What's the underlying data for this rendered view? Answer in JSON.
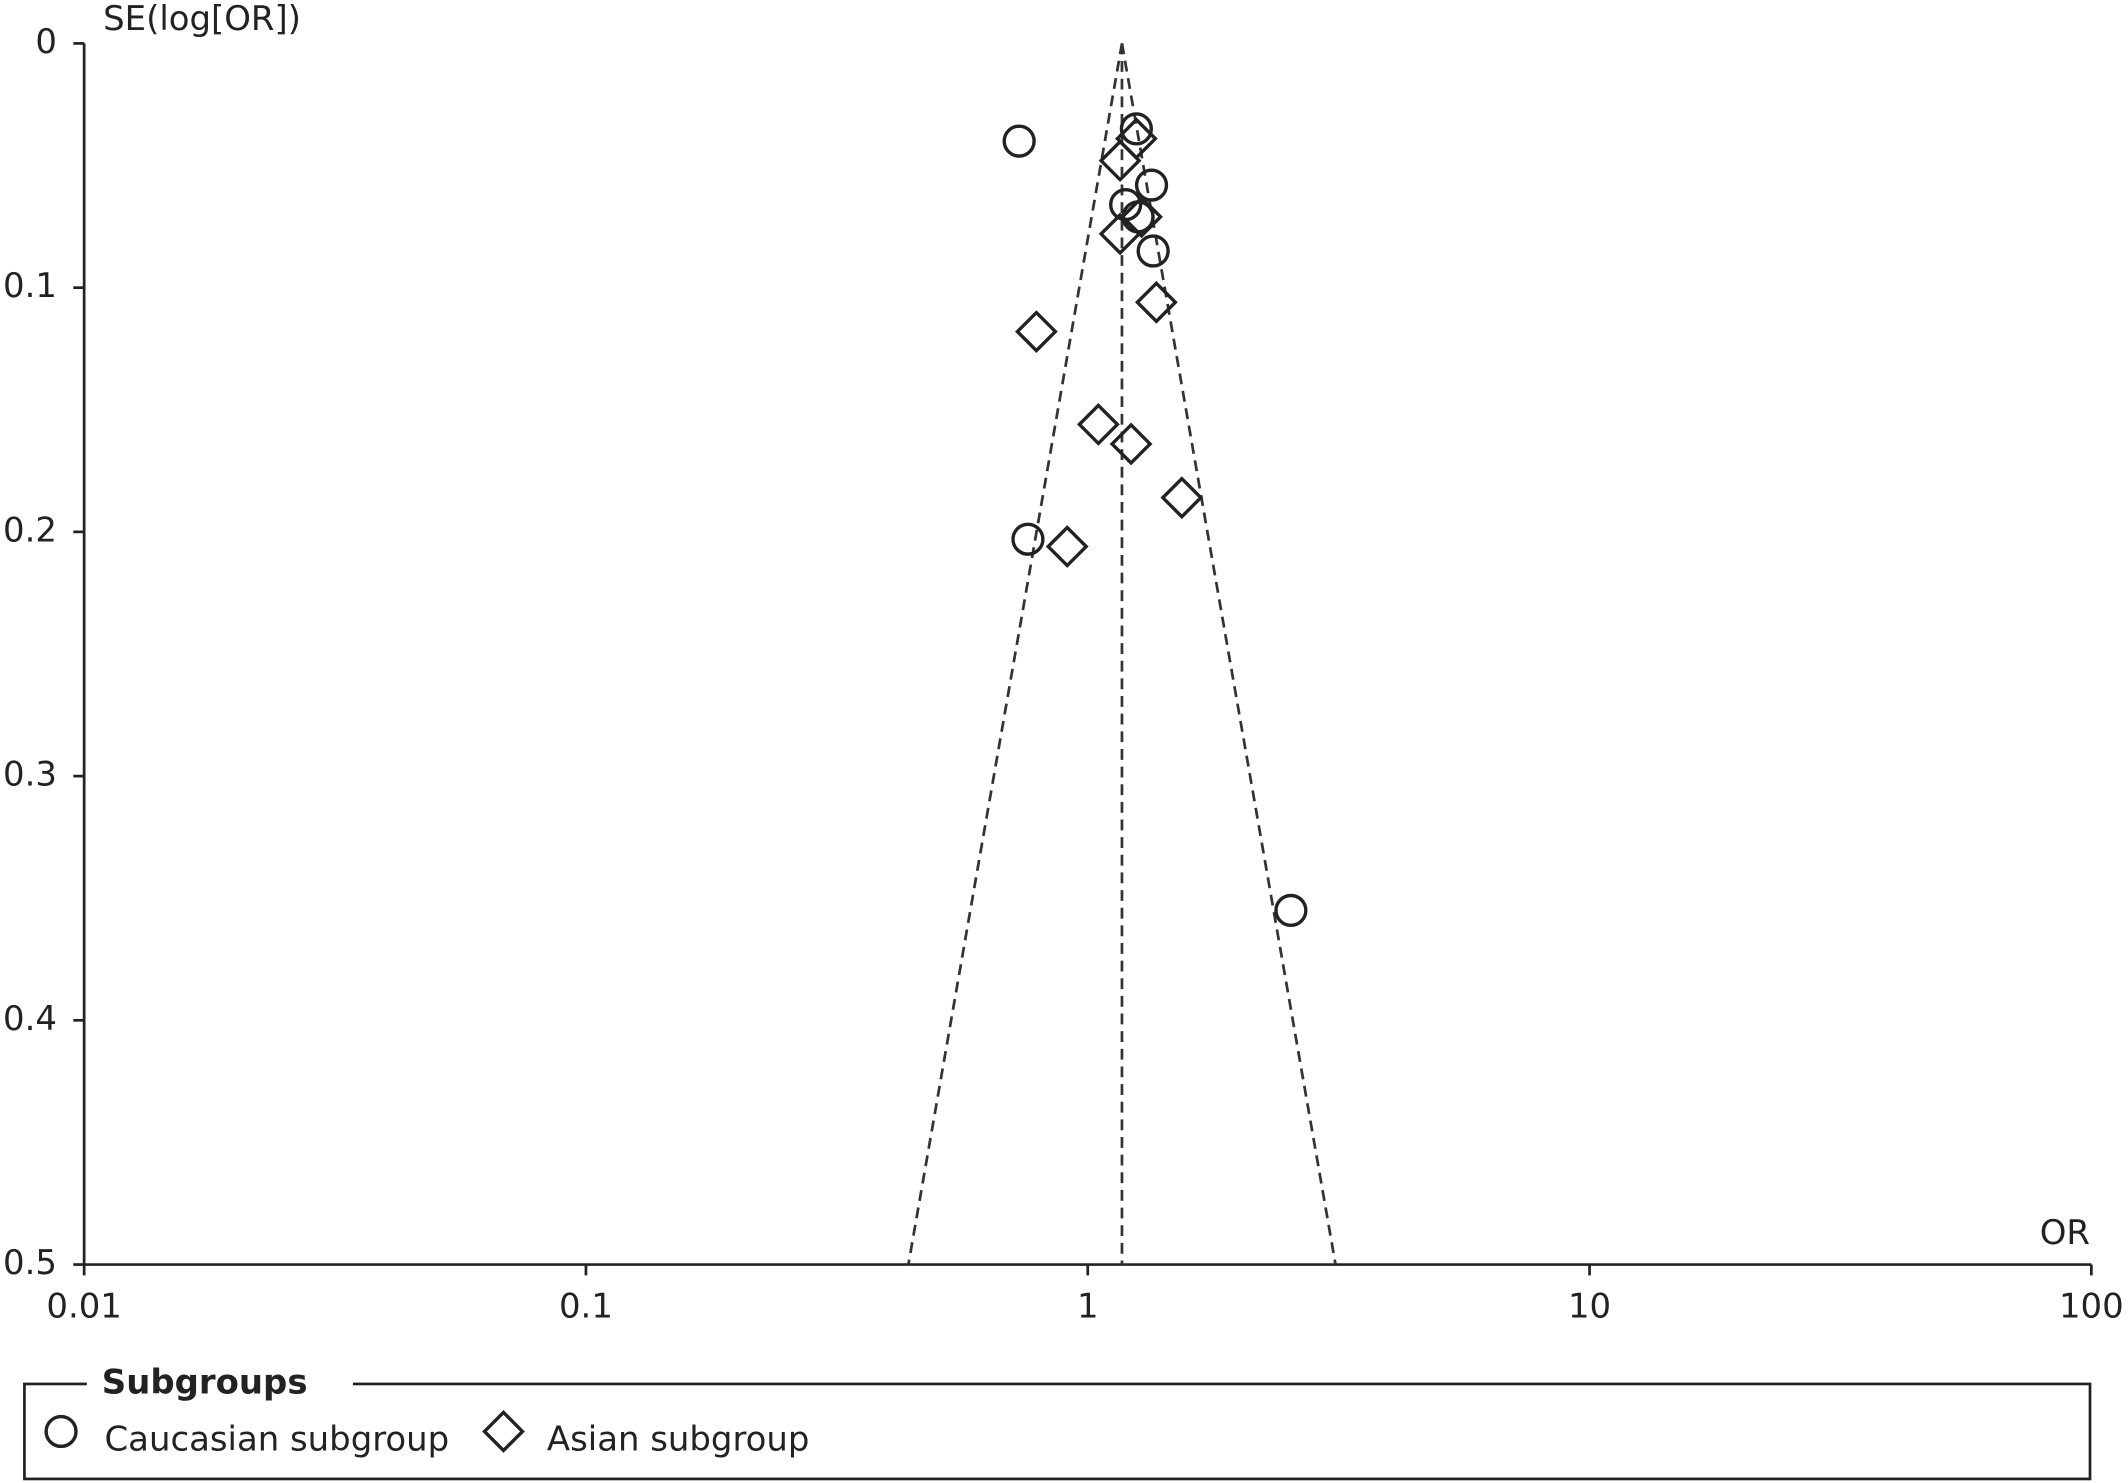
{
  "chart_data": {
    "type": "scatter",
    "y_axis_label": "SE(log[OR])",
    "x_axis_label": "OR",
    "x_log": true,
    "y_inverted": true,
    "xlim": [
      0.01,
      100
    ],
    "xticks": [
      0.01,
      0.1,
      1,
      10,
      100
    ],
    "ylim": [
      0,
      0.5
    ],
    "yticks": [
      0,
      0.1,
      0.2,
      0.3,
      0.4,
      0.5
    ],
    "pooled_or": 1.17,
    "legend_title": "Subgroups",
    "legend_position": "bottom",
    "series": [
      {
        "name": "Caucasian subgroup",
        "marker": "circle",
        "color": "#222222",
        "x": [
          0.73,
          1.25,
          1.34,
          1.19,
          1.26,
          1.35,
          0.76,
          2.54
        ],
        "values": [
          0.04,
          0.035,
          0.058,
          0.066,
          0.071,
          0.085,
          0.203,
          0.355
        ]
      },
      {
        "name": "Asian subgroup",
        "marker": "diamond",
        "color": "#222222",
        "x": [
          1.25,
          1.16,
          1.28,
          1.16,
          1.37,
          0.79,
          1.05,
          1.22,
          1.54,
          0.91
        ],
        "values": [
          0.039,
          0.048,
          0.071,
          0.078,
          0.106,
          0.118,
          0.156,
          0.164,
          0.186,
          0.206
        ]
      }
    ]
  }
}
